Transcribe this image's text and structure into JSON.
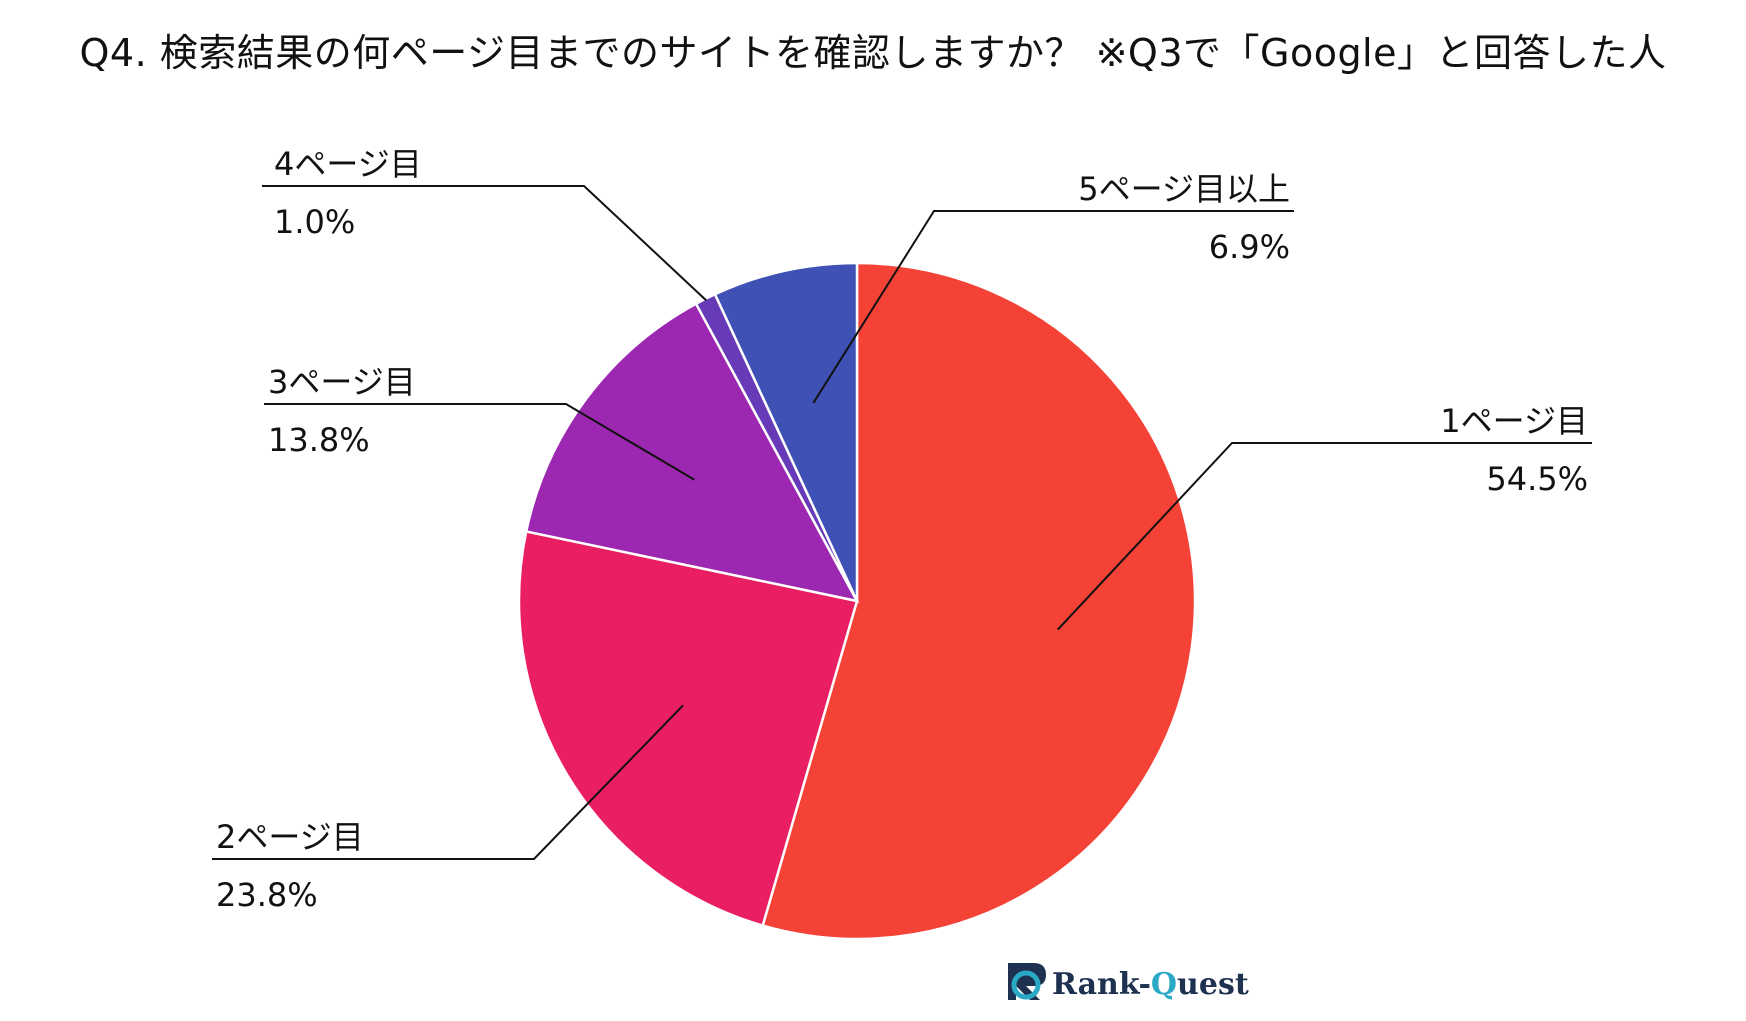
{
  "title": "Q4. 検索結果の何ページ目までのサイトを確認しますか？ ※Q3で「Google」と回答した人",
  "logo": {
    "text_main": "Rank-",
    "text_accent": "Q",
    "text_rest": "uest",
    "icon": "rank-quest-logo-icon"
  },
  "chart_data": {
    "type": "pie",
    "title": "Q4. 検索結果の何ページ目までのサイトを確認しますか？ ※Q3で「Google」と回答した人",
    "start": "12 o'clock",
    "direction": "clockwise",
    "slices": [
      {
        "label": "1ページ目",
        "value": 54.5,
        "value_label": "54.5%",
        "color": "#f44336"
      },
      {
        "label": "2ページ目",
        "value": 23.8,
        "value_label": "23.8%",
        "color": "#e91e63"
      },
      {
        "label": "3ページ目",
        "value": 13.8,
        "value_label": "13.8%",
        "color": "#9c27b0"
      },
      {
        "label": "4ページ目",
        "value": 1.0,
        "value_label": "1.0%",
        "color": "#673ab7"
      },
      {
        "label": "5ページ目以上",
        "value": 6.9,
        "value_label": "6.9%",
        "color": "#3f51b5"
      }
    ]
  }
}
